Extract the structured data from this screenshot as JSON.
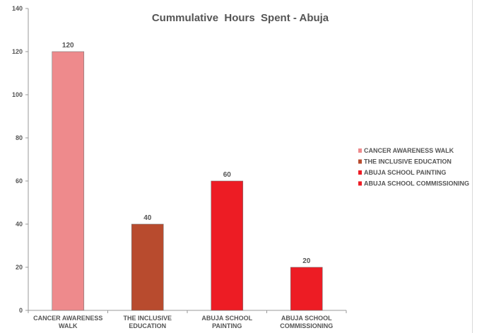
{
  "chart_data": {
    "type": "bar",
    "title": "Cummulative  Hours  Spent - Abuja",
    "xlabel": "",
    "ylabel": "",
    "ylim": [
      0,
      140
    ],
    "yticks": [
      0,
      20,
      40,
      60,
      80,
      100,
      120,
      140
    ],
    "grid": false,
    "legend_position": "right",
    "categories": [
      [
        "CANCER AWARENESS",
        "WALK"
      ],
      [
        "THE INCLUSIVE",
        "EDUCATION"
      ],
      [
        "ABUJA SCHOOL",
        "PAINTING"
      ],
      [
        "ABUJA SCHOOL",
        "COMMISSIONING"
      ]
    ],
    "values": [
      120,
      40,
      60,
      20
    ],
    "colors": [
      "#ee8a8c",
      "#b84b2e",
      "#ed1c24",
      "#ed1c24"
    ],
    "legend": [
      {
        "label": "CANCER AWARENESS WALK",
        "color": "#ee8a8c"
      },
      {
        "label": "THE INCLUSIVE EDUCATION",
        "color": "#b84b2e"
      },
      {
        "label": "ABUJA SCHOOL PAINTING",
        "color": "#ed1c24"
      },
      {
        "label": "ABUJA SCHOOL COMMISSIONING",
        "color": "#ed1c24"
      }
    ]
  }
}
